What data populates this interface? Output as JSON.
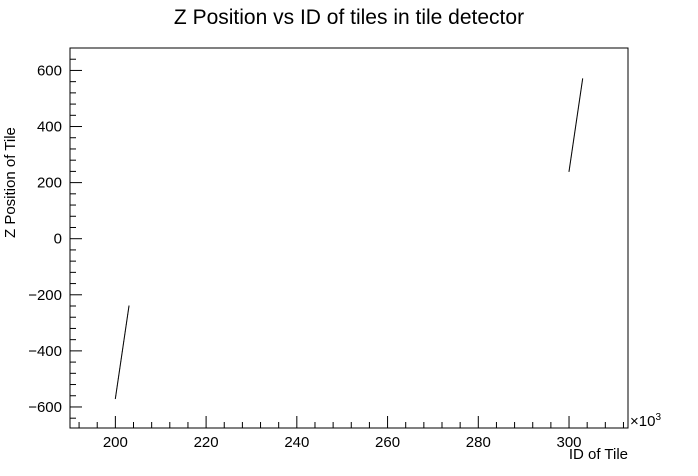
{
  "chart_data": {
    "type": "scatter",
    "title": "Z Position vs ID of tiles in tile detector",
    "xlabel": "ID of Tile",
    "ylabel": "Z Position of Tile",
    "x_multiplier_base": "×10",
    "x_multiplier_exp": "3",
    "xlim": [
      190,
      313
    ],
    "ylim": [
      -675,
      680
    ],
    "x_ticks": [
      200,
      220,
      240,
      260,
      280,
      300
    ],
    "y_ticks": [
      -600,
      -400,
      -200,
      0,
      200,
      400,
      600
    ],
    "grid": false,
    "series": [
      {
        "x_range": [
          200.0,
          203.0
        ],
        "y_range": [
          -570,
          -240
        ]
      },
      {
        "x_range": [
          300.0,
          303.0
        ],
        "y_range": [
          240,
          570
        ]
      }
    ]
  }
}
